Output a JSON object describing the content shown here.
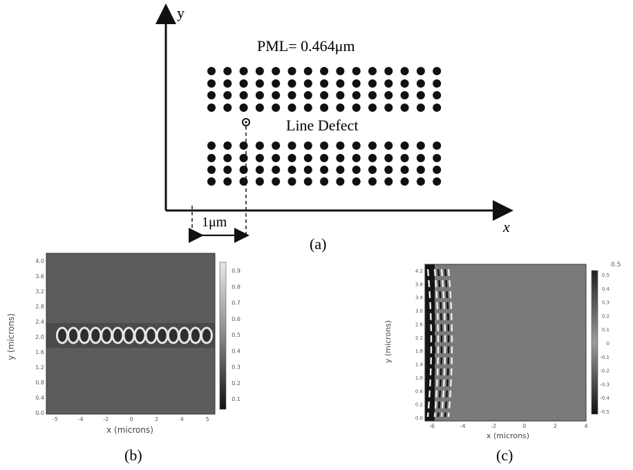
{
  "panel_a": {
    "pml_label": "PML= 0.464μm",
    "defect_label": "Line Defect",
    "y_axis_label": "y",
    "x_axis_label": "x",
    "scale_label": "1μm",
    "caption": "(a)",
    "crystal": {
      "columns": 15,
      "rows_above_defect": 4,
      "rows_below_defect": 4
    }
  },
  "panel_b": {
    "caption": "(b)",
    "chart_data": {
      "type": "heatmap",
      "xlabel": "x (microns)",
      "ylabel": "y (microns)",
      "x_ticks": [
        "-5",
        "-4",
        "-2",
        "0",
        "2",
        "4",
        "5"
      ],
      "y_ticks": [
        "4.0",
        "3.6",
        "3.2",
        "2.8",
        "2.4",
        "2.0",
        "1.6",
        "1.2",
        "0.8",
        "0.4",
        "0.0"
      ],
      "colorbar_ticks": [
        "0.9",
        "0.8",
        "0.7",
        "0.6",
        "0.5",
        "0.4",
        "0.3",
        "0.2",
        "0.1"
      ],
      "mode_lobes": 14
    }
  },
  "panel_c": {
    "caption": "(c)",
    "chart_data": {
      "type": "heatmap",
      "xlabel": "x (microns)",
      "ylabel": "y (microns)",
      "x_ticks": [
        "-6",
        "-4",
        "-2",
        "0",
        "2",
        "4"
      ],
      "y_ticks": [
        "4.2",
        "3.8",
        "3.4",
        "3.0",
        "2.6",
        "2.2",
        "1.8",
        "1.4",
        "1.0",
        "0.6",
        "0.2",
        "0.0"
      ],
      "colorbar_ticks": [
        "0.5",
        "0.4",
        "0.3",
        "0.2",
        "0.1",
        "0",
        "-0.1",
        "-0.2",
        "-0.3",
        "-0.4",
        "-0.5"
      ],
      "colorbar_top_label": "0.5"
    }
  }
}
